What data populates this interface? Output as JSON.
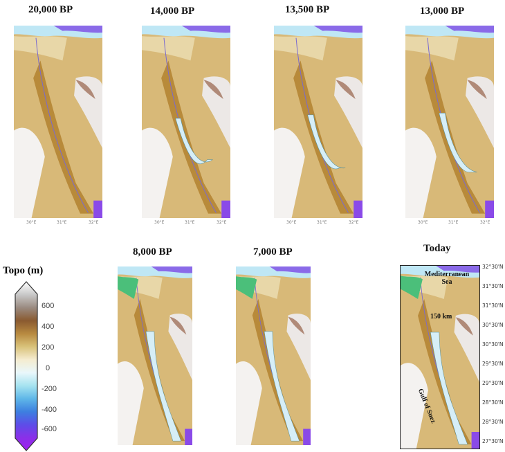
{
  "panels": [
    {
      "title": "20,000 BP",
      "ticks": [
        "30°E",
        "31°E",
        "32°E"
      ],
      "lake": 0.0
    },
    {
      "title": "14,000 BP",
      "ticks": [
        "30°E",
        "31°E",
        "32°E"
      ],
      "lake": 0.35
    },
    {
      "title": "13,500 BP",
      "ticks": [
        "30°E",
        "31°E",
        "32°E"
      ],
      "lake": 0.45
    },
    {
      "title": "13,000 BP",
      "ticks": [
        "30°E",
        "31°E",
        "32°E"
      ],
      "lake": 0.5
    },
    {
      "title": "8,000 BP",
      "lake": 1.0
    },
    {
      "title": "7,000 BP",
      "lake": 1.0
    },
    {
      "title": "Today",
      "lake": 1.0
    }
  ],
  "legend": {
    "title": "Topo (m)",
    "labels": [
      "600",
      "400",
      "200",
      "0",
      "-200",
      "-400",
      "-600"
    ],
    "colors": [
      "#ffffff",
      "#c8c8c8",
      "#9a8a80",
      "#8a5a30",
      "#b88a40",
      "#d9c27a",
      "#f5ecd0",
      "#e9f7fb",
      "#a6e3f0",
      "#5fb7e8",
      "#3d7fe0",
      "#5d4de8",
      "#8a30e8",
      "#a020f0"
    ]
  },
  "today": {
    "sea_label": "Mediterranean Sea",
    "scale_label": "150 km",
    "gulf_label": "Gulf of Suez",
    "lat_labels": [
      "32°30'N",
      "31°30'N",
      "31°30'N",
      "30°30'N",
      "30°30'N",
      "29°30'N",
      "29°30'N",
      "28°30'N",
      "28°30'N",
      "27°30'N"
    ]
  }
}
